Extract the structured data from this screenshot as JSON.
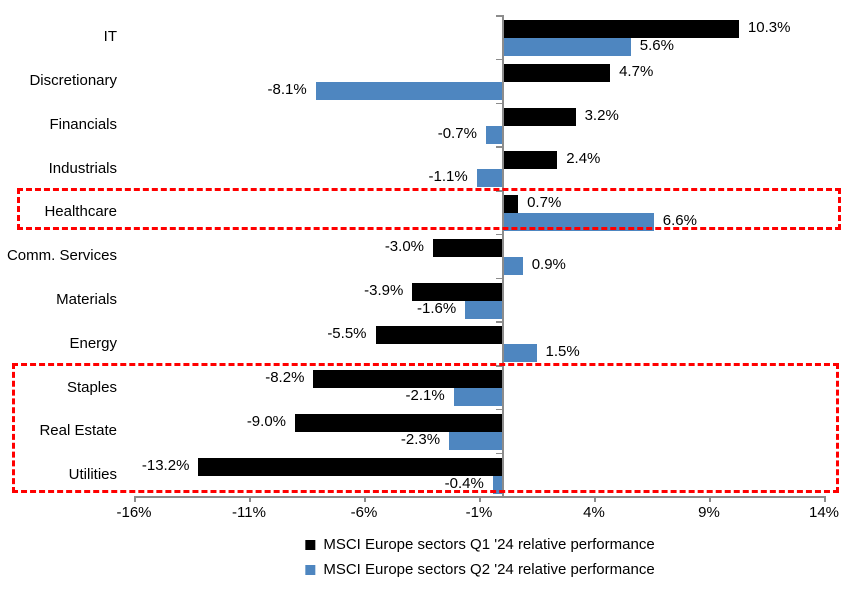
{
  "chart_data": {
    "type": "bar",
    "orientation": "horizontal",
    "title": "",
    "categories": [
      "IT",
      "Discretionary",
      "Financials",
      "Industrials",
      "Healthcare",
      "Comm. Services",
      "Materials",
      "Energy",
      "Staples",
      "Real Estate",
      "Utilities"
    ],
    "series": [
      {
        "name": "MSCI Europe sectors Q1 '24 relative performance",
        "color": "#000000",
        "values": [
          10.3,
          4.7,
          3.2,
          2.4,
          0.7,
          -3.0,
          -3.9,
          -5.5,
          -8.2,
          -9.0,
          -13.2
        ],
        "labels": [
          "10.3%",
          "4.7%",
          "3.2%",
          "2.4%",
          "0.7%",
          "-3.0%",
          "-3.9%",
          "-5.5%",
          "-8.2%",
          "-9.0%",
          "-13.2%"
        ]
      },
      {
        "name": "MSCI Europe sectors Q2 '24 relative performance",
        "color": "#4E86C0",
        "values": [
          5.6,
          -8.1,
          -0.7,
          -1.1,
          6.6,
          0.9,
          -1.6,
          1.5,
          -2.1,
          -2.3,
          -0.4
        ],
        "labels": [
          "5.6%",
          "-8.1%",
          "-0.7%",
          "-1.1%",
          "6.6%",
          "0.9%",
          "-1.6%",
          "1.5%",
          "-2.1%",
          "-2.3%",
          "-0.4%"
        ]
      }
    ],
    "x_ticks": [
      {
        "value": -16,
        "label": "-16%"
      },
      {
        "value": -11,
        "label": "-11%"
      },
      {
        "value": -6,
        "label": "-6%"
      },
      {
        "value": -1,
        "label": "-1%"
      },
      {
        "value": 4,
        "label": "4%"
      },
      {
        "value": 9,
        "label": "9%"
      },
      {
        "value": 14,
        "label": "14%"
      }
    ],
    "xlim": [
      -16,
      14
    ],
    "grid": false,
    "legend_position": "bottom-center",
    "axis_color": "#8C8C8C",
    "highlight_color": "#FF0000",
    "highlights": [
      {
        "sectors": [
          "Healthcare"
        ]
      },
      {
        "sectors": [
          "Staples",
          "Real Estate",
          "Utilities"
        ]
      }
    ]
  }
}
